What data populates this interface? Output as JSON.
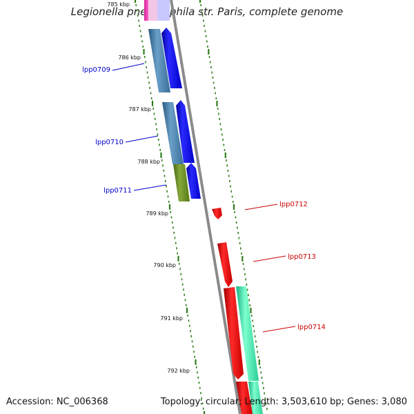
{
  "title": "Legionella pneumophila str. Paris, complete genome",
  "accession_text": "Accession: NC_006368",
  "summary_text": "Topology: circular; Length: 3,503,610 bp; Genes: 3,080",
  "colors": {
    "backbone": "#8a8a8a",
    "tick": "#2e7d1a",
    "forward_label": "#0000cc",
    "reverse_label": "#cc0000"
  },
  "ticks": [
    "785 kbp",
    "786 kbp",
    "787 kbp",
    "788 kbp",
    "789 kbp",
    "790 kbp",
    "791 kbp",
    "792 kbp"
  ],
  "genes_labeled": [
    {
      "name": "lpp0709",
      "strand": "+"
    },
    {
      "name": "lpp0710",
      "strand": "+"
    },
    {
      "name": "lpp0711",
      "strand": "+"
    },
    {
      "name": "lpp0712",
      "strand": "-"
    },
    {
      "name": "lpp0713",
      "strand": "-"
    },
    {
      "name": "lpp0714",
      "strand": "-"
    }
  ]
}
